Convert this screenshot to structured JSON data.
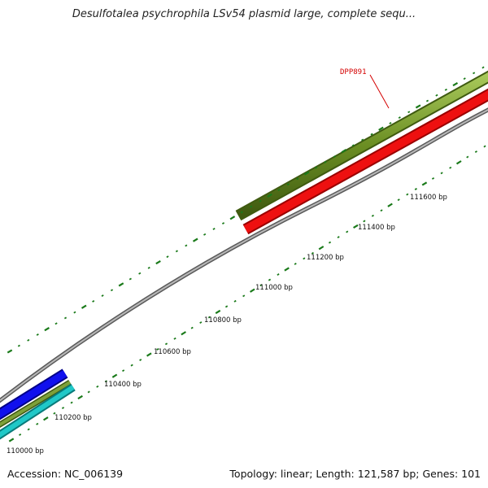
{
  "title": "Desulfotalea psychrophila LSv54 plasmid large, complete sequ...",
  "footer": {
    "accession": "Accession: NC_006139",
    "summary": "Topology: linear; Length: 121,587 bp; Genes: 101"
  },
  "map": {
    "ruler": [
      {
        "bp": 110000,
        "label": "110000 bp"
      },
      {
        "bp": 110200,
        "label": "110200 bp"
      },
      {
        "bp": 110400,
        "label": "110400 bp"
      },
      {
        "bp": 110600,
        "label": "110600 bp"
      },
      {
        "bp": 110800,
        "label": "110800 bp"
      },
      {
        "bp": 111000,
        "label": "111000 bp"
      },
      {
        "bp": 111200,
        "label": "111200 bp"
      },
      {
        "bp": 111400,
        "label": "111400 bp"
      },
      {
        "bp": 111600,
        "label": "111600 bp"
      }
    ],
    "features": [
      {
        "name": "",
        "color": "#1010ee",
        "edge": "#000088",
        "track": "blue"
      },
      {
        "name": "",
        "color": "#6b8e23",
        "edge": "#3f5a10",
        "track": "olive-lower"
      },
      {
        "name": "",
        "color": "#20c8c8",
        "edge": "#0a7a7a",
        "track": "cyan"
      },
      {
        "name": "DPP891",
        "color": "#6b8e23",
        "edge": "#3f5a10",
        "track": "olive-upper"
      },
      {
        "name": "",
        "color": "#ee1010",
        "edge": "#990000",
        "track": "red"
      }
    ],
    "colors": {
      "backbone": "#808080",
      "ticks": "#1a7a1a",
      "gene_label": "#d40000"
    }
  }
}
